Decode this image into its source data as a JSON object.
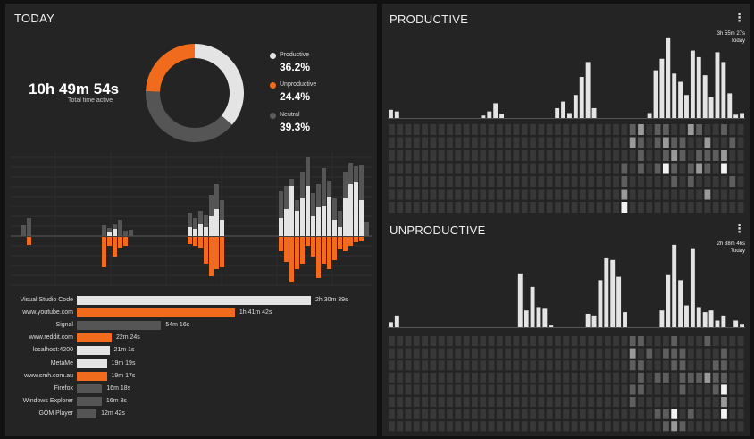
{
  "colors": {
    "productive": "#e4e4e4",
    "unproductive": "#f06b1c",
    "neutral": "#555555",
    "panel": "#242424",
    "heat_base": "#3a3a3a"
  },
  "today": {
    "title": "TODAY",
    "total_time": "10h 49m 54s",
    "total_label": "Total time active",
    "donut": [
      {
        "name": "Productive",
        "pct": "36.2%",
        "value": 36.2,
        "color_key": "productive"
      },
      {
        "name": "Unproductive",
        "pct": "24.4%",
        "value": 24.4,
        "color_key": "unproductive"
      },
      {
        "name": "Neutral",
        "pct": "39.3%",
        "value": 39.3,
        "color_key": "neutral"
      }
    ]
  },
  "timeline": {
    "up_total": [
      0,
      12,
      20,
      0,
      0,
      0,
      0,
      0,
      0,
      0,
      0,
      0,
      0,
      0,
      0,
      0,
      12,
      9,
      13,
      18,
      6,
      7,
      0,
      0,
      0,
      0,
      0,
      0,
      0,
      0,
      0,
      0,
      26,
      20,
      28,
      24,
      46,
      58,
      40,
      0,
      0,
      0,
      0,
      0,
      0,
      0,
      0,
      0,
      0,
      50,
      56,
      64,
      40,
      72,
      88,
      48,
      58,
      76,
      62,
      42,
      28,
      72,
      82,
      78,
      80,
      16
    ],
    "up_prod": [
      0,
      0,
      0,
      0,
      0,
      0,
      0,
      0,
      0,
      0,
      0,
      0,
      0,
      0,
      0,
      0,
      0,
      4,
      8,
      0,
      0,
      0,
      0,
      0,
      0,
      0,
      0,
      0,
      0,
      0,
      0,
      0,
      10,
      8,
      14,
      10,
      22,
      30,
      18,
      0,
      0,
      0,
      0,
      0,
      0,
      0,
      0,
      0,
      0,
      20,
      30,
      56,
      28,
      42,
      56,
      22,
      32,
      34,
      44,
      18,
      10,
      42,
      58,
      60,
      40,
      0
    ],
    "down": [
      0,
      0,
      9,
      0,
      0,
      0,
      0,
      0,
      0,
      0,
      0,
      0,
      0,
      0,
      0,
      0,
      34,
      10,
      22,
      12,
      10,
      0,
      0,
      0,
      0,
      0,
      0,
      0,
      0,
      0,
      0,
      0,
      8,
      10,
      12,
      30,
      44,
      36,
      34,
      0,
      0,
      0,
      0,
      0,
      0,
      0,
      0,
      0,
      0,
      16,
      28,
      50,
      36,
      30,
      10,
      22,
      46,
      30,
      36,
      26,
      14,
      16,
      10,
      6,
      4,
      0
    ]
  },
  "apps": [
    {
      "name": "Visual Studio Code",
      "duration": "2h 30m 39s",
      "value": 150.65,
      "color_key": "productive"
    },
    {
      "name": "www.youtube.com",
      "duration": "1h 41m 42s",
      "value": 101.7,
      "color_key": "unproductive"
    },
    {
      "name": "Signal",
      "duration": "54m 16s",
      "value": 54.27,
      "color_key": "neutral"
    },
    {
      "name": "www.reddit.com",
      "duration": "22m 24s",
      "value": 22.4,
      "color_key": "unproductive"
    },
    {
      "name": "localhost:4200",
      "duration": "21m 1s",
      "value": 21.02,
      "color_key": "productive"
    },
    {
      "name": "MetaMe",
      "duration": "19m 19s",
      "value": 19.32,
      "color_key": "productive"
    },
    {
      "name": "www.smh.com.au",
      "duration": "19m 17s",
      "value": 19.28,
      "color_key": "unproductive"
    },
    {
      "name": "Firefox",
      "duration": "16m 18s",
      "value": 16.3,
      "color_key": "neutral"
    },
    {
      "name": "Windows Explorer",
      "duration": "16m 3s",
      "value": 16.05,
      "color_key": "neutral"
    },
    {
      "name": "GOM Player",
      "duration": "12m 42s",
      "value": 12.7,
      "color_key": "neutral"
    }
  ],
  "productive": {
    "title": "PRODUCTIVE",
    "menu_icon": "more-vert-icon",
    "stamp_line1": "3h 55m 27s",
    "stamp_line2": "Today",
    "bars": [
      10,
      8,
      0,
      0,
      0,
      0,
      0,
      0,
      0,
      0,
      0,
      0,
      0,
      0,
      0,
      3,
      8,
      18,
      5,
      0,
      0,
      0,
      0,
      0,
      0,
      0,
      0,
      12,
      20,
      6,
      28,
      50,
      68,
      12,
      0,
      0,
      0,
      0,
      0,
      0,
      0,
      0,
      6,
      58,
      72,
      98,
      54,
      44,
      28,
      82,
      74,
      52,
      25,
      80,
      68,
      30,
      4,
      6
    ],
    "heat": [
      [
        1,
        1,
        1,
        1,
        1,
        1,
        1,
        1,
        1,
        1,
        1,
        1,
        1,
        1,
        1,
        1,
        1,
        1,
        1,
        1,
        1,
        1,
        1,
        1,
        1,
        1,
        1,
        1,
        1,
        2,
        3,
        1,
        2,
        2,
        1,
        1,
        3,
        2,
        1,
        1,
        2,
        1,
        1
      ],
      [
        1,
        1,
        1,
        1,
        1,
        1,
        1,
        1,
        1,
        1,
        1,
        1,
        1,
        1,
        1,
        1,
        1,
        1,
        1,
        1,
        1,
        1,
        1,
        1,
        1,
        1,
        1,
        1,
        1,
        3,
        2,
        1,
        2,
        3,
        2,
        2,
        1,
        1,
        3,
        1,
        1,
        2,
        1
      ],
      [
        1,
        1,
        1,
        1,
        1,
        1,
        1,
        1,
        1,
        1,
        1,
        1,
        1,
        1,
        1,
        1,
        1,
        1,
        1,
        1,
        1,
        1,
        1,
        1,
        1,
        1,
        1,
        1,
        1,
        1,
        2,
        1,
        1,
        2,
        3,
        2,
        1,
        2,
        2,
        2,
        3,
        1,
        1
      ],
      [
        1,
        1,
        1,
        1,
        1,
        1,
        1,
        1,
        1,
        1,
        1,
        1,
        1,
        1,
        1,
        1,
        1,
        1,
        1,
        1,
        1,
        1,
        1,
        1,
        1,
        1,
        1,
        1,
        2,
        1,
        2,
        1,
        2,
        4,
        2,
        1,
        2,
        3,
        2,
        1,
        4,
        1,
        1
      ],
      [
        1,
        1,
        1,
        1,
        1,
        1,
        1,
        1,
        1,
        1,
        1,
        1,
        1,
        1,
        1,
        1,
        1,
        1,
        1,
        1,
        1,
        1,
        1,
        1,
        1,
        1,
        1,
        1,
        2,
        1,
        1,
        1,
        1,
        1,
        2,
        1,
        2,
        1,
        1,
        1,
        1,
        2,
        1
      ],
      [
        1,
        1,
        1,
        1,
        1,
        1,
        1,
        1,
        1,
        1,
        1,
        1,
        1,
        1,
        1,
        1,
        1,
        1,
        1,
        1,
        1,
        1,
        1,
        1,
        1,
        1,
        1,
        1,
        3,
        1,
        1,
        1,
        1,
        1,
        1,
        1,
        1,
        1,
        3,
        1,
        1,
        1,
        1
      ],
      [
        1,
        1,
        1,
        1,
        1,
        1,
        1,
        1,
        1,
        1,
        1,
        1,
        1,
        1,
        1,
        1,
        1,
        1,
        1,
        1,
        1,
        1,
        1,
        1,
        1,
        1,
        1,
        1,
        4,
        1,
        1,
        1,
        1,
        1,
        1,
        1,
        1,
        1,
        1,
        1,
        1,
        1,
        1
      ]
    ]
  },
  "unproductive": {
    "title": "UNPRODUCTIVE",
    "menu_icon": "more-vert-icon",
    "stamp_line1": "2h 38m 46s",
    "stamp_line2": "Today",
    "bars": [
      6,
      14,
      0,
      0,
      0,
      0,
      0,
      0,
      0,
      0,
      0,
      0,
      0,
      0,
      0,
      0,
      0,
      0,
      0,
      0,
      0,
      64,
      20,
      48,
      24,
      22,
      2,
      0,
      0,
      0,
      0,
      0,
      16,
      14,
      56,
      82,
      80,
      60,
      18,
      0,
      0,
      0,
      0,
      0,
      20,
      62,
      98,
      56,
      26,
      94,
      24,
      18,
      20,
      8,
      14,
      0,
      8,
      4
    ],
    "heat": [
      [
        1,
        1,
        1,
        1,
        1,
        1,
        1,
        1,
        1,
        1,
        1,
        1,
        1,
        1,
        1,
        1,
        1,
        1,
        1,
        1,
        1,
        1,
        1,
        1,
        1,
        1,
        1,
        1,
        1,
        2,
        2,
        1,
        1,
        1,
        2,
        1,
        1,
        1,
        2,
        1,
        1,
        1,
        1
      ],
      [
        1,
        1,
        1,
        1,
        1,
        1,
        1,
        1,
        1,
        1,
        1,
        1,
        1,
        1,
        1,
        1,
        1,
        1,
        1,
        1,
        1,
        1,
        1,
        1,
        1,
        1,
        1,
        1,
        1,
        3,
        1,
        2,
        1,
        2,
        2,
        2,
        1,
        1,
        1,
        1,
        2,
        1,
        1
      ],
      [
        1,
        1,
        1,
        1,
        1,
        1,
        1,
        1,
        1,
        1,
        1,
        1,
        1,
        1,
        1,
        1,
        1,
        1,
        1,
        1,
        1,
        1,
        1,
        1,
        1,
        1,
        1,
        1,
        1,
        2,
        2,
        1,
        1,
        1,
        2,
        2,
        1,
        1,
        1,
        2,
        2,
        1,
        1
      ],
      [
        1,
        1,
        1,
        1,
        1,
        1,
        1,
        1,
        1,
        1,
        1,
        1,
        1,
        1,
        1,
        1,
        1,
        1,
        1,
        1,
        1,
        1,
        1,
        1,
        1,
        1,
        1,
        1,
        1,
        1,
        2,
        1,
        2,
        2,
        1,
        2,
        2,
        2,
        3,
        2,
        2,
        1,
        1
      ],
      [
        1,
        1,
        1,
        1,
        1,
        1,
        1,
        1,
        1,
        1,
        1,
        1,
        1,
        1,
        1,
        1,
        1,
        1,
        1,
        1,
        1,
        1,
        1,
        1,
        1,
        1,
        1,
        1,
        1,
        2,
        2,
        1,
        1,
        1,
        1,
        2,
        1,
        1,
        1,
        2,
        4,
        1,
        1
      ],
      [
        1,
        1,
        1,
        1,
        1,
        1,
        1,
        1,
        1,
        1,
        1,
        1,
        1,
        1,
        1,
        1,
        1,
        1,
        1,
        1,
        1,
        1,
        1,
        1,
        1,
        1,
        1,
        1,
        1,
        2,
        1,
        1,
        1,
        1,
        1,
        1,
        1,
        1,
        1,
        1,
        3,
        1,
        1
      ],
      [
        1,
        1,
        1,
        1,
        1,
        1,
        1,
        1,
        1,
        1,
        1,
        1,
        1,
        1,
        1,
        1,
        1,
        1,
        1,
        1,
        1,
        1,
        1,
        1,
        1,
        1,
        1,
        1,
        1,
        1,
        1,
        1,
        2,
        2,
        4,
        1,
        2,
        1,
        1,
        1,
        4,
        1,
        1
      ],
      [
        1,
        1,
        1,
        1,
        1,
        1,
        1,
        1,
        1,
        1,
        1,
        1,
        1,
        1,
        1,
        1,
        1,
        1,
        1,
        1,
        1,
        1,
        1,
        1,
        1,
        1,
        1,
        1,
        1,
        1,
        1,
        1,
        1,
        2,
        3,
        2,
        1,
        1,
        1,
        1,
        1,
        1,
        1
      ]
    ]
  }
}
